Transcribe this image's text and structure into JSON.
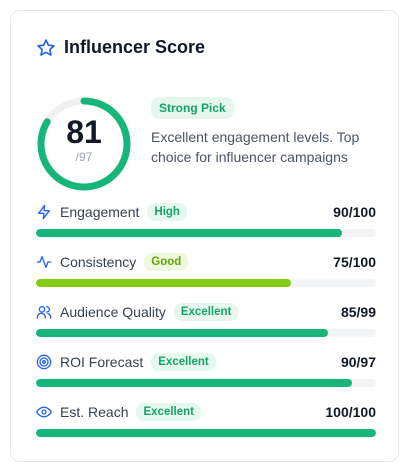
{
  "header": {
    "title": "Influencer Score",
    "icon": "star-icon"
  },
  "overall": {
    "value": "81",
    "max": "/97",
    "fraction": 0.835,
    "ring_color": "#16b67a"
  },
  "summary": {
    "badge": "Strong Pick",
    "description": "Excellent engagement levels. Top choice for influencer campaigns"
  },
  "metrics": [
    {
      "name": "engagement",
      "label": "Engagement",
      "badge": "High",
      "badge_style": "green",
      "score": "90/100",
      "fraction": 0.9,
      "icon": "lightning-icon",
      "bar_color": "#16b67a"
    },
    {
      "name": "consistency",
      "label": "Consistency",
      "badge": "Good",
      "badge_style": "lime",
      "score": "75/100",
      "fraction": 0.75,
      "icon": "activity-icon",
      "bar_color": "#84cc16"
    },
    {
      "name": "audience-quality",
      "label": "Audience Quality",
      "badge": "Excellent",
      "badge_style": "green",
      "score": "85/99",
      "fraction": 0.86,
      "icon": "users-icon",
      "bar_color": "#16b67a"
    },
    {
      "name": "roi-forecast",
      "label": "ROI Forecast",
      "badge": "Excellent",
      "badge_style": "green",
      "score": "90/97",
      "fraction": 0.93,
      "icon": "target-icon",
      "bar_color": "#16b67a"
    },
    {
      "name": "est-reach",
      "label": "Est. Reach",
      "badge": "Excellent",
      "badge_style": "green",
      "score": "100/100",
      "fraction": 1.0,
      "icon": "eye-icon",
      "bar_color": "#16b67a"
    }
  ]
}
